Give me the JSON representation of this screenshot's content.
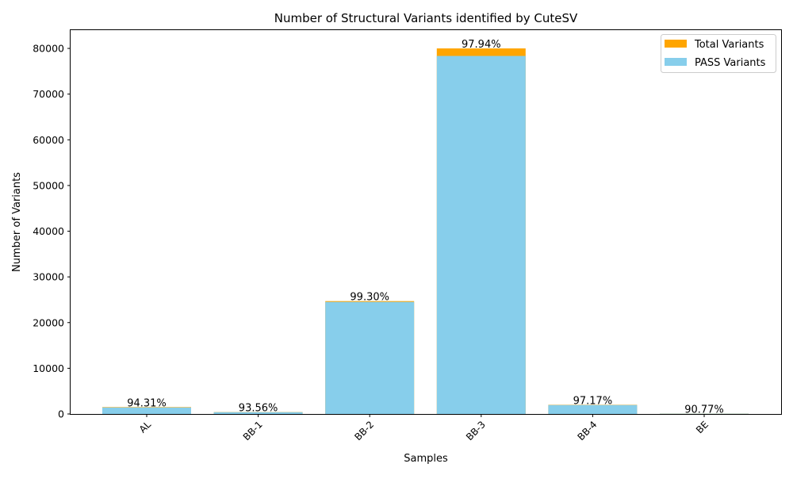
{
  "chart_data": {
    "type": "bar",
    "title": "Number of Structural Variants identified by CuteSV",
    "xlabel": "Samples",
    "ylabel": "Number of Variants",
    "categories": [
      "AL",
      "BB-1",
      "BB-2",
      "BB-3",
      "BB-4",
      "BE"
    ],
    "series": [
      {
        "name": "Total Variants",
        "color": "#FFA500",
        "values": [
          1510,
          420,
          24700,
          80000,
          2010,
          65
        ]
      },
      {
        "name": "PASS Variants",
        "color": "#87CEEB",
        "values": [
          1424,
          393,
          24527,
          78352,
          1953,
          59
        ]
      }
    ],
    "data_labels": [
      "94.31%",
      "93.56%",
      "99.30%",
      "97.94%",
      "97.17%",
      "90.77%"
    ],
    "ylim": [
      0,
      84000
    ],
    "yticks": [
      0,
      10000,
      20000,
      30000,
      40000,
      50000,
      60000,
      70000,
      80000
    ],
    "grid": false,
    "legend_position": "top-right"
  }
}
